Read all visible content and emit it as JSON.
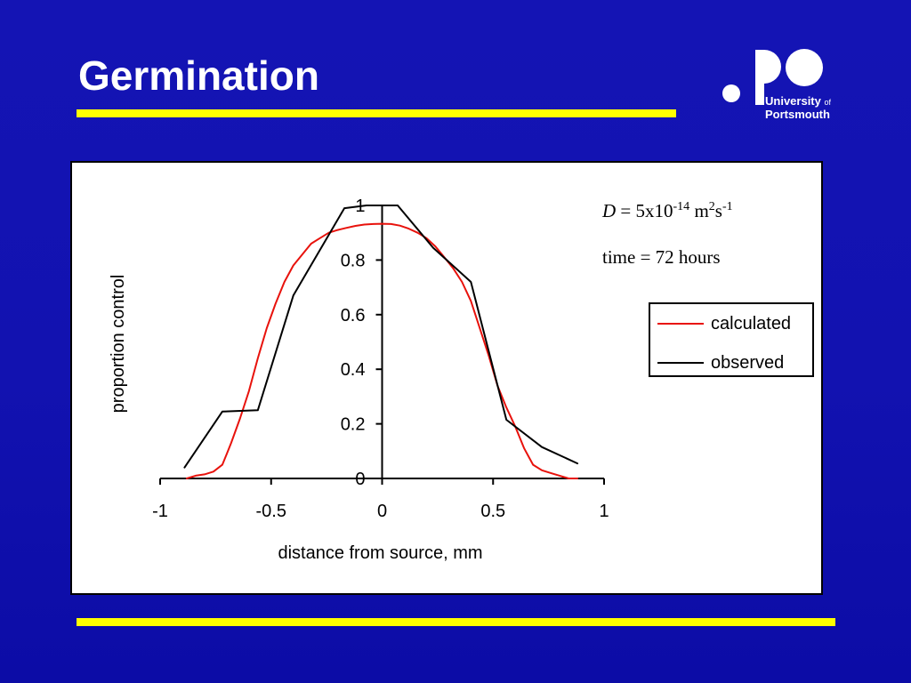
{
  "slide": {
    "title": "Germination"
  },
  "logo": {
    "line1": "University",
    "line1_suffix": "of",
    "line2": "Portsmouth"
  },
  "annotations": {
    "diffusion_symbol": "D",
    "diffusion_eq": " = 5x10",
    "diffusion_exp1": "-14",
    "diffusion_unit_m": " m",
    "diffusion_exp2": "2",
    "diffusion_unit_s": "s",
    "diffusion_exp3": "-1",
    "time_text": "time = 72 hours"
  },
  "colors": {
    "background": "#1212b0",
    "accent_bar": "#ffff00",
    "calculated": "#e8120c",
    "observed": "#000000"
  },
  "chart_data": {
    "type": "line",
    "xlabel": "distance from source, mm",
    "ylabel": "proportion control",
    "xlim": [
      -1,
      1
    ],
    "ylim": [
      0,
      1
    ],
    "x_ticks": [
      "-1",
      "-0.5",
      "0",
      "0.5",
      "1"
    ],
    "y_ticks": [
      "0",
      "0.2",
      "0.4",
      "0.6",
      "0.8",
      "1"
    ],
    "legend_position": "right",
    "series": [
      {
        "name": "calculated",
        "color": "#e8120c",
        "x": [
          -0.88,
          -0.84,
          -0.8,
          -0.76,
          -0.72,
          -0.7,
          -0.68,
          -0.64,
          -0.6,
          -0.56,
          -0.52,
          -0.48,
          -0.44,
          -0.4,
          -0.36,
          -0.32,
          -0.28,
          -0.24,
          -0.2,
          -0.16,
          -0.12,
          -0.08,
          -0.04,
          0.0,
          0.04,
          0.08,
          0.12,
          0.16,
          0.2,
          0.24,
          0.28,
          0.32,
          0.36,
          0.4,
          0.44,
          0.48,
          0.52,
          0.56,
          0.6,
          0.64,
          0.68,
          0.72,
          0.76,
          0.8,
          0.84,
          0.88
        ],
        "y": [
          0.0,
          0.01,
          0.015,
          0.025,
          0.05,
          0.09,
          0.13,
          0.22,
          0.32,
          0.44,
          0.55,
          0.64,
          0.72,
          0.78,
          0.82,
          0.86,
          0.88,
          0.9,
          0.91,
          0.918,
          0.925,
          0.93,
          0.932,
          0.933,
          0.932,
          0.926,
          0.915,
          0.9,
          0.88,
          0.85,
          0.81,
          0.77,
          0.72,
          0.65,
          0.55,
          0.45,
          0.34,
          0.26,
          0.19,
          0.11,
          0.05,
          0.03,
          0.02,
          0.01,
          0.0,
          0.0
        ]
      },
      {
        "name": "observed",
        "color": "#000000",
        "x": [
          -0.89,
          -0.72,
          -0.56,
          -0.4,
          -0.17,
          -0.07,
          0.07,
          0.23,
          0.4,
          0.56,
          0.72,
          0.88
        ],
        "y": [
          0.04,
          0.245,
          0.25,
          0.67,
          0.99,
          1.0,
          1.0,
          0.845,
          0.72,
          0.215,
          0.115,
          0.055
        ]
      }
    ]
  }
}
